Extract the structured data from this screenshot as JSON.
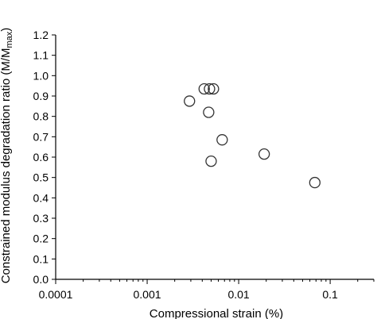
{
  "chart_data": {
    "type": "scatter",
    "xlabel": "Compressional strain (%)",
    "ylabel": "Constrained modulus degradation ratio (M/M",
    "ylabel_sub": "max",
    "ylabel_close": ")",
    "x_scale": "log",
    "xlim": [
      0.0001,
      0.3
    ],
    "ylim": [
      0,
      1.2
    ],
    "x_ticks": [
      0.0001,
      0.001,
      0.01,
      0.1
    ],
    "x_tick_labels": [
      "0.0001",
      "0.001",
      "0.01",
      "0.1"
    ],
    "y_ticks": [
      0,
      0.1,
      0.2,
      0.3,
      0.4,
      0.5,
      0.6,
      0.7,
      0.8,
      0.9,
      1.0,
      1.1,
      1.2
    ],
    "y_tick_labels": [
      "0.0",
      "0.1",
      "0.2",
      "0.3",
      "0.4",
      "0.5",
      "0.6",
      "0.7",
      "0.8",
      "0.9",
      "1.0",
      "1.1",
      "1.2"
    ],
    "grid": false,
    "marker": "open-circle",
    "series": [
      {
        "points": [
          {
            "x": 0.0029,
            "y": 0.875
          },
          {
            "x": 0.0042,
            "y": 0.935
          },
          {
            "x": 0.0048,
            "y": 0.935
          },
          {
            "x": 0.0053,
            "y": 0.935
          },
          {
            "x": 0.0047,
            "y": 0.82
          },
          {
            "x": 0.0066,
            "y": 0.685
          },
          {
            "x": 0.005,
            "y": 0.58
          },
          {
            "x": 0.019,
            "y": 0.615
          },
          {
            "x": 0.068,
            "y": 0.475
          }
        ]
      }
    ]
  }
}
